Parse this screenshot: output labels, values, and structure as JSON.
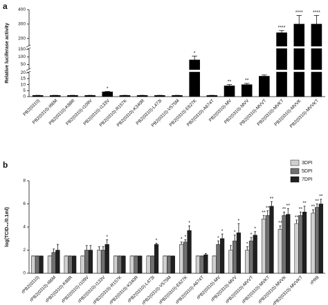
{
  "chart_data": [
    {
      "type": "bar",
      "panel": "a",
      "y_label": "Relative luciferase activity",
      "color": "#000000",
      "categories": [
        "PB2(0310)",
        "PB2(0310)-I66M",
        "PB2(0310)-K88R",
        "PB2(0310)-I109V",
        "PB2(0310)-I133V",
        "PB2(0310)-R157K",
        "PB2(0310)-K340R",
        "PB2(0310)-L473I",
        "PB2(0310)-V575M",
        "PB2(0310)-E627K",
        "PB2(0310)-A674T",
        "PB2(0310)-MV",
        "PB2(0310)-MVV",
        "PB2(0310)-MVVT",
        "PB2(0310)-MVKT",
        "PB2(0310)-MVVK",
        "PB2(0310)-MVVKT"
      ],
      "values": [
        1,
        1,
        1,
        1,
        4,
        1,
        1,
        1,
        1,
        80,
        1,
        9,
        10,
        17,
        240,
        300,
        300
      ],
      "errors": [
        0.1,
        0.1,
        0.1,
        0.1,
        0.3,
        0.1,
        0.1,
        0.1,
        0.1,
        25,
        0.1,
        1,
        1,
        1,
        15,
        60,
        60
      ],
      "annotations": [
        null,
        null,
        null,
        null,
        "*",
        null,
        null,
        null,
        null,
        "*",
        null,
        "**",
        "**",
        "***",
        "****",
        "****",
        "****"
      ],
      "y_segments": [
        {
          "ylim": [
            0,
            20
          ],
          "yticks": [
            0,
            5,
            10,
            15,
            20
          ]
        },
        {
          "ylim": [
            20,
            150
          ],
          "yticks": [
            50,
            100,
            150
          ]
        },
        {
          "ylim": [
            150,
            400
          ],
          "yticks": [
            200,
            300,
            400
          ]
        }
      ]
    },
    {
      "type": "bar",
      "panel": "b",
      "y_label": "log(TCID₅₀/0.1ml)",
      "legend": "upper right",
      "categories": [
        "rPB2(0310)",
        "rPB2(0310)-I66M",
        "rPB2(0310)-K88R",
        "rPB2(0310)-I109V",
        "rPB2(0310)-I133V",
        "rPB2(0310)-R157K",
        "rPB2(0310)-K340R",
        "rPB2(0310)-L473I",
        "rPB2(0310)-V575M",
        "rPB2(0310)-E627K",
        "rPB2(0310)-A674T",
        "rPB2(0310)-MV",
        "rPB2(0310)-MVV",
        "rPB2(0310)-MVVT",
        "rPB2(0310)-MVKT",
        "rPB2(0310)-MVVK",
        "rPB2(0310)-MVVKT",
        "rPR8"
      ],
      "ylim": [
        0,
        8
      ],
      "yticks": [
        0,
        2,
        4,
        6,
        8
      ],
      "series": [
        {
          "name": "3DPI",
          "color": "#d0d0d0",
          "values": [
            1.5,
            1.5,
            1.5,
            1.5,
            2.0,
            1.5,
            1.5,
            1.5,
            1.5,
            2.5,
            1.5,
            1.5,
            2.0,
            2.0,
            4.7,
            3.8,
            4.3,
            5.2
          ],
          "errors": [
            0,
            0,
            0,
            0,
            0.3,
            0,
            0,
            0,
            0,
            0.2,
            0,
            0,
            0.4,
            0.3,
            0.3,
            0.3,
            0.3,
            0.3
          ],
          "annotations": [
            null,
            null,
            null,
            null,
            null,
            null,
            null,
            null,
            null,
            "*",
            null,
            null,
            null,
            "*",
            "**",
            "**",
            "**",
            "**"
          ]
        },
        {
          "name": "5DPI",
          "color": "#707070",
          "values": [
            1.5,
            1.8,
            1.5,
            2.0,
            2.0,
            1.5,
            1.5,
            1.5,
            1.5,
            2.7,
            1.5,
            2.5,
            2.8,
            2.8,
            5.0,
            5.0,
            5.0,
            5.7
          ],
          "errors": [
            0,
            0.3,
            0,
            0.4,
            0.3,
            0,
            0,
            0,
            0,
            0.2,
            0,
            0.3,
            0.5,
            0.3,
            0.4,
            0.3,
            0.3,
            0.3
          ],
          "annotations": [
            null,
            null,
            null,
            null,
            null,
            null,
            null,
            null,
            null,
            "*",
            null,
            "*",
            "*",
            "*",
            "**",
            "**",
            "**",
            "**"
          ]
        },
        {
          "name": "7DPI",
          "color": "#202020",
          "values": [
            1.5,
            2.0,
            1.5,
            2.0,
            2.5,
            1.5,
            1.5,
            2.5,
            1.5,
            3.7,
            1.6,
            3.0,
            3.5,
            3.3,
            5.8,
            5.1,
            5.3,
            6.0
          ],
          "errors": [
            0,
            0.5,
            0,
            0.4,
            0.4,
            0,
            0,
            0.1,
            0,
            0.4,
            0.1,
            0.4,
            0.8,
            0.3,
            0.4,
            0.5,
            0.5,
            0.4
          ],
          "annotations": [
            null,
            null,
            null,
            null,
            "*",
            null,
            null,
            "*",
            null,
            "*",
            null,
            "*",
            "*",
            "*",
            "**",
            "**",
            "**",
            "**"
          ]
        }
      ]
    }
  ]
}
